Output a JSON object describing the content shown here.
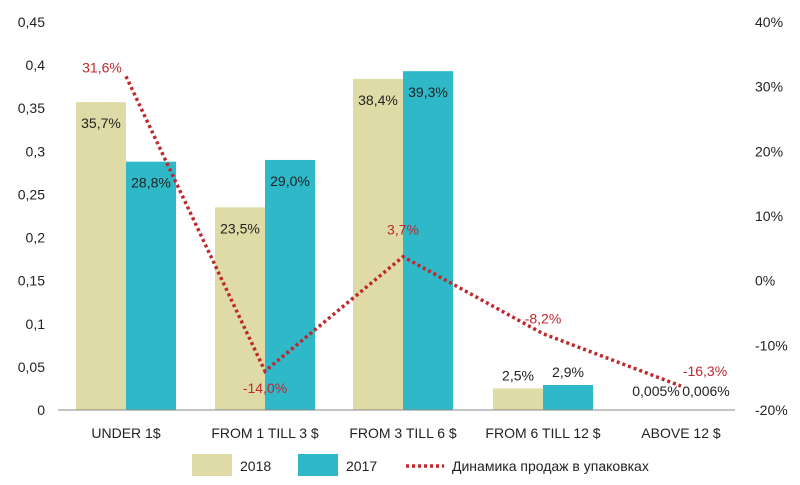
{
  "chart_data": {
    "type": "bar",
    "categories": [
      "UNDER 1$",
      "FROM 1 TILL 3 $",
      "FROM 3 TILL 6 $",
      "FROM 6 TILL 12 $",
      "ABOVE 12 $"
    ],
    "series": [
      {
        "name": "2018",
        "values": [
          0.357,
          0.235,
          0.384,
          0.025,
          5e-05
        ],
        "labels": [
          "35,7%",
          "23,5%",
          "38,4%",
          "2,5%",
          "0,005%"
        ],
        "color": "#DEDBA6"
      },
      {
        "name": "2017",
        "values": [
          0.288,
          0.29,
          0.393,
          0.029,
          6e-05
        ],
        "labels": [
          "28,8%",
          "29,0%",
          "39,3%",
          "2,9%",
          "0,006%"
        ],
        "color": "#2EB8C8"
      }
    ],
    "line_series": {
      "name": "Динамика продаж в упаковках",
      "type": "line",
      "axis": "secondary",
      "values": [
        31.6,
        -14.0,
        3.7,
        -8.2,
        -16.3
      ],
      "labels": [
        "31,6%",
        "-14,0%",
        "3,7%",
        "-8,2%",
        "-16,3%"
      ],
      "color": "#C0282D",
      "style": "dotted"
    },
    "y_axis": {
      "ylim": [
        0,
        0.45
      ],
      "ticks": [
        "0",
        "0,05",
        "0,1",
        "0,15",
        "0,2",
        "0,25",
        "0,3",
        "0,35",
        "0,4",
        "0,45"
      ]
    },
    "y2_axis": {
      "ylim": [
        -20,
        40
      ],
      "ticks": [
        "-20%",
        "-10%",
        "0%",
        "10%",
        "20%",
        "30%",
        "40%"
      ]
    },
    "legend": {
      "placement": "bottom",
      "items": [
        "2018",
        "2017",
        "Динамика продаж в упаковках"
      ]
    },
    "grid": false
  }
}
